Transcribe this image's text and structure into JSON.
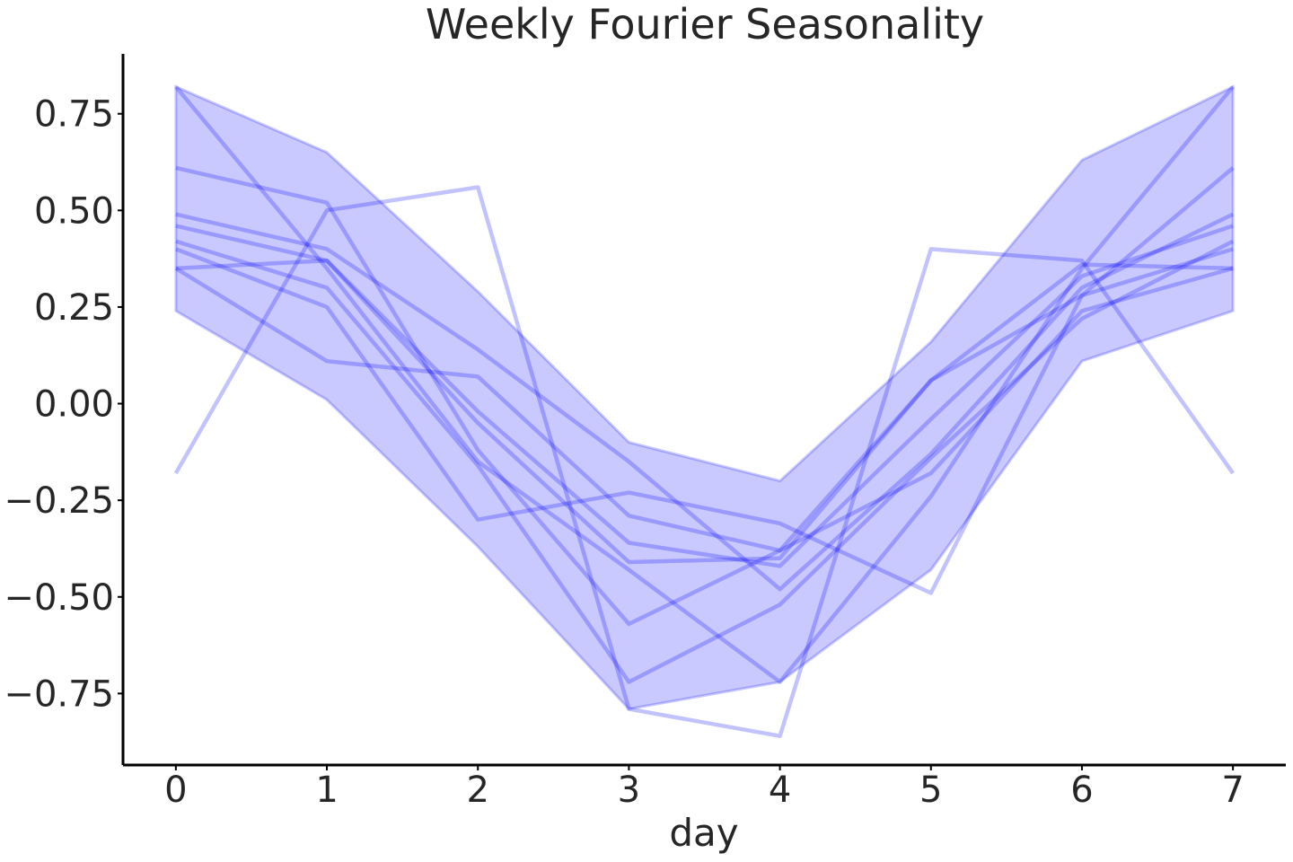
{
  "chart_data": {
    "type": "line",
    "title": "Weekly Fourier Seasonality",
    "xlabel": "day",
    "ylabel": "",
    "x": [
      0,
      1,
      2,
      3,
      4,
      5,
      6,
      7
    ],
    "xlim": [
      -0.35,
      7.35
    ],
    "ylim": [
      -0.935,
      0.905
    ],
    "xticks": [
      0,
      1,
      2,
      3,
      4,
      5,
      6,
      7
    ],
    "xtick_labels": [
      "0",
      "1",
      "2",
      "3",
      "4",
      "5",
      "6",
      "7"
    ],
    "yticks": [
      0.75,
      0.5,
      0.25,
      0.0,
      -0.25,
      -0.5,
      -0.75
    ],
    "ytick_labels": [
      "0.75",
      "0.50",
      "0.25",
      "0.00",
      "−0.25",
      "−0.50",
      "−0.75"
    ],
    "grid": false,
    "legend": "none",
    "band": {
      "upper": [
        0.82,
        0.65,
        0.29,
        -0.1,
        -0.2,
        0.16,
        0.63,
        0.82
      ],
      "lower": [
        0.24,
        0.01,
        -0.37,
        -0.79,
        -0.72,
        -0.43,
        0.11,
        0.24
      ],
      "color": "#0000ff",
      "opacity": 0.21
    },
    "series": [
      {
        "values": [
          -0.18,
          0.5,
          0.56,
          -0.79,
          -0.86,
          0.4,
          0.37,
          -0.18
        ]
      },
      {
        "values": [
          0.82,
          0.35,
          -0.15,
          -0.43,
          -0.72,
          -0.24,
          0.35,
          0.82
        ]
      },
      {
        "values": [
          0.61,
          0.52,
          -0.12,
          -0.57,
          -0.38,
          0.06,
          0.28,
          0.61
        ]
      },
      {
        "values": [
          0.49,
          0.4,
          0.14,
          -0.15,
          -0.48,
          -0.13,
          0.3,
          0.49
        ]
      },
      {
        "values": [
          0.46,
          0.37,
          -0.02,
          -0.36,
          -0.42,
          -0.04,
          0.33,
          0.46
        ]
      },
      {
        "values": [
          0.42,
          0.3,
          -0.16,
          -0.72,
          -0.52,
          -0.14,
          0.22,
          0.42
        ]
      },
      {
        "values": [
          0.4,
          0.25,
          -0.3,
          -0.23,
          -0.31,
          -0.49,
          0.28,
          0.4
        ]
      },
      {
        "values": [
          0.35,
          0.37,
          -0.05,
          -0.41,
          -0.4,
          0.06,
          0.36,
          0.35
        ]
      },
      {
        "values": [
          0.35,
          0.11,
          0.07,
          -0.29,
          -0.38,
          -0.18,
          0.24,
          0.35
        ]
      }
    ],
    "line_color": "#0000ff",
    "line_opacity": 0.24
  }
}
